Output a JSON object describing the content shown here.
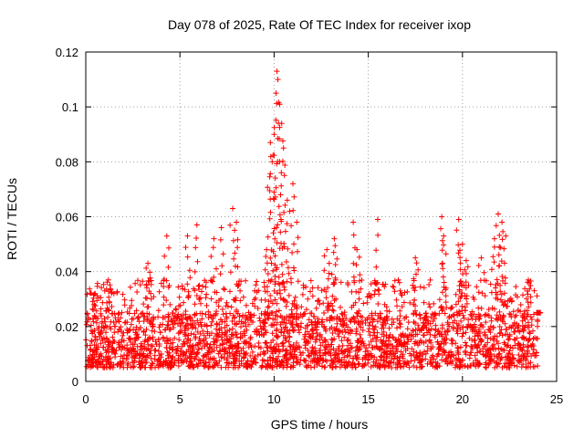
{
  "chart_data": {
    "type": "scatter",
    "title": "Day 078 of 2025, Rate Of TEC Index for receiver ixop",
    "xlabel": "GPS time / hours",
    "ylabel": "ROTI / TECUs",
    "xlim": [
      0,
      25
    ],
    "ylim": [
      0,
      0.12
    ],
    "xticks": [
      0,
      5,
      10,
      15,
      20,
      25
    ],
    "xtick_labels": [
      "0",
      "5",
      "10",
      "15",
      "20",
      "25"
    ],
    "yticks": [
      0,
      0.02,
      0.04,
      0.06,
      0.08,
      0.1,
      0.12
    ],
    "ytick_labels": [
      "0",
      "0.02",
      "0.04",
      "0.06",
      "0.08",
      "0.1",
      "0.12"
    ],
    "grid": true,
    "marker": "plus",
    "color": "#ff0000",
    "data_extent_hours": [
      0,
      24
    ],
    "baseline_range": [
      0.005,
      0.025
    ],
    "series": [
      {
        "name": "ROTI",
        "description_points": [
          {
            "x": 0.5,
            "y": 0.032
          },
          {
            "x": 1.2,
            "y": 0.037
          },
          {
            "x": 3.3,
            "y": 0.043
          },
          {
            "x": 4.3,
            "y": 0.053
          },
          {
            "x": 5.4,
            "y": 0.053
          },
          {
            "x": 5.9,
            "y": 0.057
          },
          {
            "x": 6.8,
            "y": 0.052
          },
          {
            "x": 7.2,
            "y": 0.056
          },
          {
            "x": 7.8,
            "y": 0.063
          },
          {
            "x": 8.0,
            "y": 0.058
          },
          {
            "x": 9.6,
            "y": 0.048
          },
          {
            "x": 9.8,
            "y": 0.087
          },
          {
            "x": 9.9,
            "y": 0.08
          },
          {
            "x": 10.0,
            "y": 0.09
          },
          {
            "x": 10.1,
            "y": 0.105
          },
          {
            "x": 10.15,
            "y": 0.113
          },
          {
            "x": 10.2,
            "y": 0.11
          },
          {
            "x": 10.3,
            "y": 0.101
          },
          {
            "x": 10.4,
            "y": 0.094
          },
          {
            "x": 10.5,
            "y": 0.085
          },
          {
            "x": 10.7,
            "y": 0.066
          },
          {
            "x": 11.0,
            "y": 0.072
          },
          {
            "x": 11.2,
            "y": 0.058
          },
          {
            "x": 12.8,
            "y": 0.048
          },
          {
            "x": 13.2,
            "y": 0.052
          },
          {
            "x": 14.2,
            "y": 0.058
          },
          {
            "x": 14.4,
            "y": 0.048
          },
          {
            "x": 15.5,
            "y": 0.059
          },
          {
            "x": 17.5,
            "y": 0.045
          },
          {
            "x": 18.9,
            "y": 0.06
          },
          {
            "x": 19.0,
            "y": 0.053
          },
          {
            "x": 19.8,
            "y": 0.059
          },
          {
            "x": 20.0,
            "y": 0.05
          },
          {
            "x": 20.2,
            "y": 0.044
          },
          {
            "x": 21.0,
            "y": 0.045
          },
          {
            "x": 21.7,
            "y": 0.052
          },
          {
            "x": 21.9,
            "y": 0.061
          },
          {
            "x": 22.1,
            "y": 0.058
          },
          {
            "x": 22.3,
            "y": 0.053
          },
          {
            "x": 23.5,
            "y": 0.037
          },
          {
            "x": 24.0,
            "y": 0.025
          }
        ]
      }
    ]
  }
}
